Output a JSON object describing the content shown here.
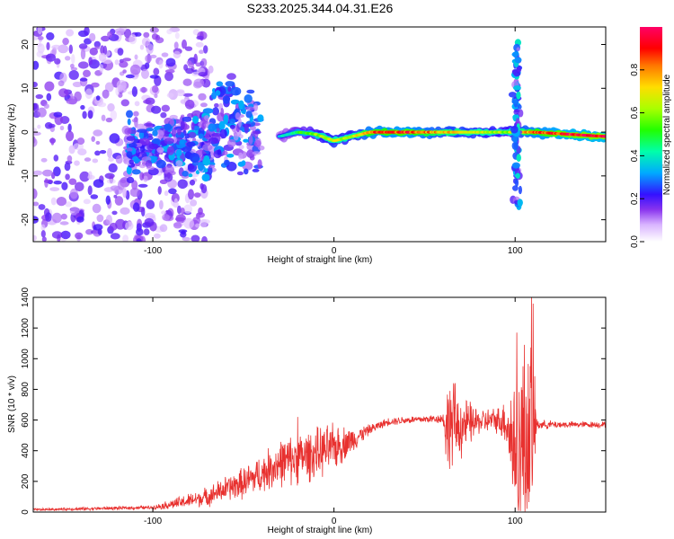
{
  "figure": {
    "title": "S233.2025.344.04.31.E26"
  },
  "chart_data": [
    {
      "type": "heatmap",
      "title": "S233.2025.344.04.31.E26",
      "xlabel": "Height of straight line (km)",
      "ylabel": "Frequency (Hz)",
      "xlim": [
        -166,
        150
      ],
      "ylim": [
        -25,
        24
      ],
      "xticks": [
        -100,
        0,
        100
      ],
      "yticks": [
        -20,
        -10,
        0,
        10,
        20
      ],
      "colorbar": {
        "label": "Normalized spectral amplitude",
        "range": [
          0,
          1
        ],
        "ticks": [
          0.0,
          0.2,
          0.4,
          0.6,
          0.8
        ],
        "colors": [
          "#ffffff",
          "#cc99ff",
          "#7722ee",
          "#2222ff",
          "#00ccff",
          "#00ff44",
          "#ccff00",
          "#ffcc00",
          "#ff0000",
          "#ff0066"
        ]
      },
      "features": [
        {
          "name": "scattered-noise-left",
          "x_range": [
            -166,
            -90
          ],
          "freq_range": [
            -25,
            24
          ],
          "amplitude": 0.15
        },
        {
          "name": "blob-cluster",
          "x_range": [
            -115,
            -40
          ],
          "freq_range": [
            -15,
            10
          ],
          "amplitude": 0.2
        },
        {
          "name": "main-trace",
          "x_points": [
            -30,
            -20,
            -10,
            0,
            10,
            20,
            40,
            60,
            80,
            95,
            110,
            130,
            150
          ],
          "freq_points": [
            -1,
            0,
            -0.5,
            -2,
            -1,
            0,
            0,
            0,
            0,
            0,
            0,
            -0.5,
            -1
          ],
          "amplitude_points": [
            0.35,
            0.5,
            0.6,
            0.7,
            0.65,
            0.85,
            0.9,
            0.75,
            0.7,
            0.6,
            0.85,
            0.95,
            0.97
          ]
        },
        {
          "name": "vertical-burst",
          "x": 101,
          "freq_range": [
            -18,
            21
          ],
          "amplitude": 0.25
        }
      ]
    },
    {
      "type": "line",
      "xlabel": "Height of straight line (km)",
      "ylabel": "SNR (10 * v/v)",
      "xlim": [
        -166,
        150
      ],
      "ylim": [
        0,
        1400
      ],
      "xticks": [
        -100,
        0,
        100
      ],
      "yticks": [
        0,
        200,
        400,
        600,
        800,
        1000,
        1200,
        1400
      ],
      "color": "#e8312f",
      "envelope": {
        "x": [
          -166,
          -100,
          -85,
          -70,
          -60,
          -50,
          -40,
          -30,
          -20,
          -10,
          0,
          10,
          20,
          30,
          40,
          50,
          60,
          62,
          66,
          70,
          80,
          90,
          95,
          100,
          105,
          108,
          110,
          112,
          130,
          150
        ],
        "mean": [
          15,
          30,
          60,
          100,
          150,
          190,
          250,
          320,
          350,
          380,
          420,
          470,
          540,
          590,
          600,
          605,
          610,
          550,
          560,
          560,
          590,
          600,
          590,
          400,
          450,
          500,
          590,
          570,
          570,
          570
        ],
        "amp": [
          8,
          12,
          40,
          60,
          80,
          100,
          120,
          150,
          160,
          160,
          150,
          80,
          30,
          25,
          25,
          25,
          30,
          250,
          280,
          200,
          80,
          80,
          150,
          500,
          550,
          600,
          650,
          30,
          20,
          20
        ]
      },
      "peaks": [
        {
          "x": 109,
          "y": 1400
        },
        {
          "x": 101,
          "y": 1170
        },
        {
          "x": 105,
          "y": 1090
        },
        {
          "x": 66,
          "y": 840
        },
        {
          "x": 64,
          "y": 790
        },
        {
          "x": -20,
          "y": 620
        }
      ]
    }
  ]
}
